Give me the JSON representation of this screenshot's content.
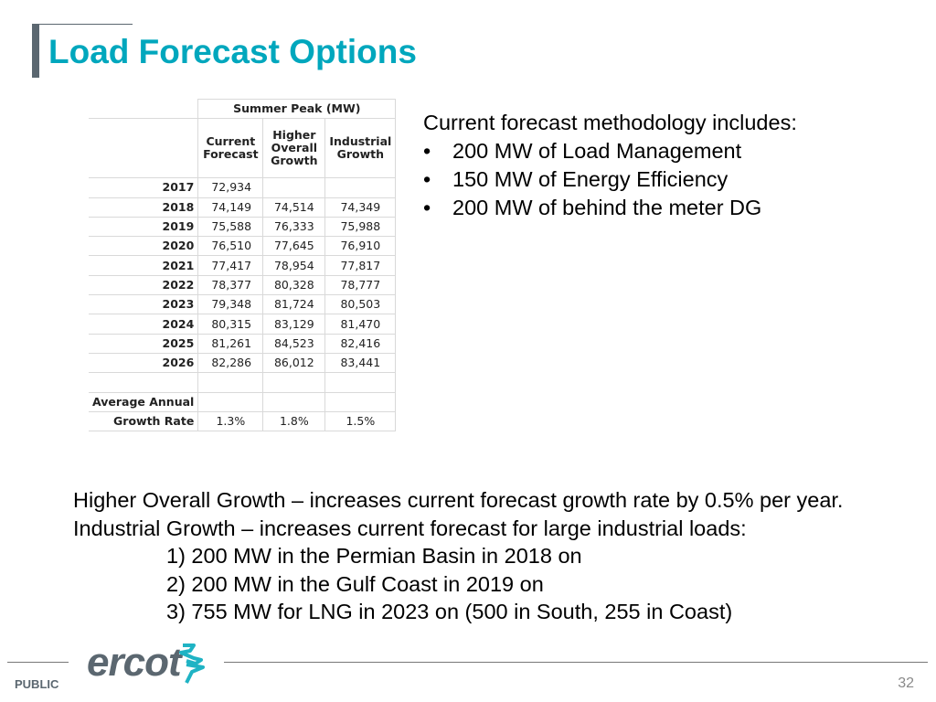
{
  "title": "Load Forecast Options",
  "table": {
    "group_header": "Summer Peak (MW)",
    "columns": [
      [
        "",
        "Current",
        "Forecast"
      ],
      [
        "Higher",
        "Overall",
        "Growth"
      ],
      [
        "",
        "Industrial",
        "Growth"
      ]
    ],
    "rows": [
      {
        "year": "2017",
        "values": [
          "72,934",
          "",
          ""
        ]
      },
      {
        "year": "2018",
        "values": [
          "74,149",
          "74,514",
          "74,349"
        ]
      },
      {
        "year": "2019",
        "values": [
          "75,588",
          "76,333",
          "75,988"
        ]
      },
      {
        "year": "2020",
        "values": [
          "76,510",
          "77,645",
          "76,910"
        ]
      },
      {
        "year": "2021",
        "values": [
          "77,417",
          "78,954",
          "77,817"
        ]
      },
      {
        "year": "2022",
        "values": [
          "78,377",
          "80,328",
          "78,777"
        ]
      },
      {
        "year": "2023",
        "values": [
          "79,348",
          "81,724",
          "80,503"
        ]
      },
      {
        "year": "2024",
        "values": [
          "80,315",
          "83,129",
          "81,470"
        ]
      },
      {
        "year": "2025",
        "values": [
          "81,261",
          "84,523",
          "82,416"
        ]
      },
      {
        "year": "2026",
        "values": [
          "82,286",
          "86,012",
          "83,441"
        ]
      }
    ],
    "avg_label_1": "Average Annual",
    "avg_label_2": "Growth Rate",
    "avg_values": [
      "1.3%",
      "1.8%",
      "1.5%"
    ]
  },
  "notes": {
    "heading": "Current forecast methodology includes:",
    "items": [
      "200 MW of Load Management",
      "150 MW of Energy Efficiency",
      "200 MW of behind the meter DG"
    ]
  },
  "bottom": {
    "line1": "Higher Overall Growth – increases current forecast growth rate by 0.5% per year.",
    "line2": "Industrial Growth – increases current forecast for large industrial loads:",
    "items": [
      "1) 200 MW in the Permian Basin in 2018 on",
      "2) 200 MW in the Gulf Coast in 2019 on",
      "3) 755 MW for LNG in 2023 on (500 in South, 255 in Coast)"
    ]
  },
  "footer": {
    "classification": "PUBLIC",
    "logo": "ercot",
    "page": "32"
  },
  "colors": {
    "accent": "#00a7bd",
    "gray": "#5b6770"
  }
}
